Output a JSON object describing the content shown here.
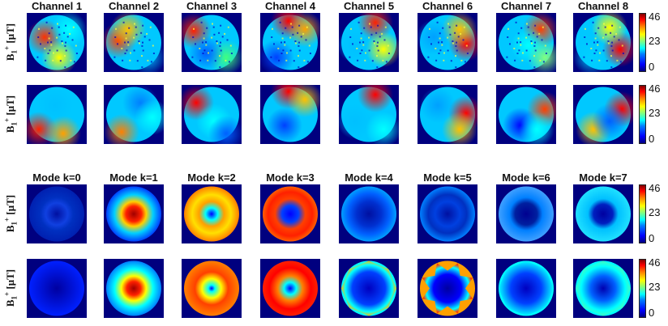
{
  "top_titles": [
    "Channel 1",
    "Channel 2",
    "Channel 3",
    "Channel 4",
    "Channel 5",
    "Channel 6",
    "Channel 7",
    "Channel 8"
  ],
  "bottom_titles": [
    "Mode  k=0",
    "Mode  k=1",
    "Mode  k=2",
    "Mode  k=3",
    "Mode  k=4",
    "Mode  k=5",
    "Mode  k=6",
    "Mode  k=7"
  ],
  "row_label": {
    "main": "B",
    "sub": "1",
    "sup": "+",
    "unit": " [μT]"
  },
  "colorbar": {
    "ticks": [
      "46",
      "23",
      "0"
    ],
    "min": 0,
    "max": 46
  },
  "colors": {
    "background": "#00007f",
    "jet_low": "#0000ff",
    "jet_mid": "#00ffff",
    "jet_high": "#ff0000"
  },
  "panel_rows": [
    {
      "kind": "channel-measured",
      "count": 8
    },
    {
      "kind": "channel-simulated",
      "count": 8
    },
    {
      "kind": "mode-measured",
      "count": 8
    },
    {
      "kind": "mode-simulated",
      "count": 8
    }
  ]
}
